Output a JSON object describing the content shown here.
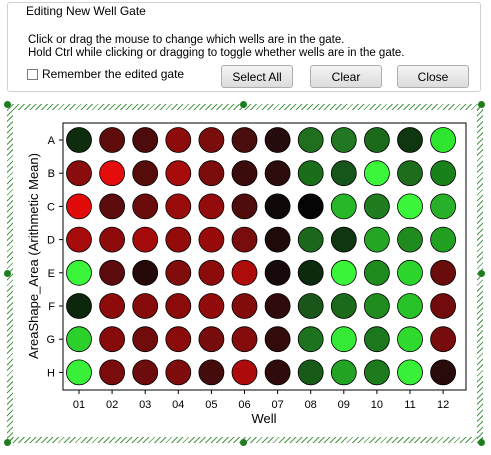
{
  "dialog": {
    "title": "Editing New Well Gate",
    "instruction_1": "Click or drag the mouse to change which wells are in the gate.",
    "instruction_2": "Hold Ctrl while clicking or dragging to toggle whether wells are in the gate.",
    "remember_label": "Remember the edited gate",
    "remember_checked": false,
    "select_all_label": "Select All",
    "clear_label": "Clear",
    "close_label": "Close"
  },
  "plate": {
    "x_label": "Well",
    "y_label": "AreaShape_Area (Arithmetic Mean)",
    "rows": [
      "A",
      "B",
      "C",
      "D",
      "E",
      "F",
      "G",
      "H"
    ],
    "cols": [
      "01",
      "02",
      "03",
      "04",
      "05",
      "06",
      "07",
      "08",
      "09",
      "10",
      "11",
      "12"
    ],
    "well_colors": [
      [
        "#0d2d0e",
        "#5e0c0c",
        "#4d0c0c",
        "#8e0b0b",
        "#7a0c0c",
        "#4a0d0d",
        "#250b0b",
        "#1f6f1f",
        "#227722",
        "#1b6a1b",
        "#0e360f",
        "#2ee62e"
      ],
      [
        "#8a0c0c",
        "#e50c0c",
        "#570c0c",
        "#a70b0b",
        "#7c0c0c",
        "#3c0c0c",
        "#2d0c0c",
        "#1a6e1a",
        "#17561a",
        "#3cf63c",
        "#1d6d1d",
        "#198119"
      ],
      [
        "#e20b0b",
        "#5c0c0c",
        "#6a0c0c",
        "#9a0b0b",
        "#930b0b",
        "#4f0c0c",
        "#0f0909",
        "#050505",
        "#28b728",
        "#1f7d1f",
        "#3bf53b",
        "#28b028"
      ],
      [
        "#a80b0b",
        "#8f0b0b",
        "#a50b0b",
        "#930b0b",
        "#980b0b",
        "#790c0c",
        "#1f0a0a",
        "#1c671c",
        "#0f3610",
        "#25a425",
        "#1f8b1f",
        "#22a022"
      ],
      [
        "#3bf53b",
        "#5c0c0c",
        "#260909",
        "#800c0c",
        "#8c0b0b",
        "#ae0b0b",
        "#180a0a",
        "#0c2a0d",
        "#3af43a",
        "#1f8b1f",
        "#2cd52c",
        "#6a0c0c"
      ],
      [
        "#0c270c",
        "#8e0b0b",
        "#860b0b",
        "#8b0b0b",
        "#920b0b",
        "#820c0c",
        "#2f0b0b",
        "#1a551a",
        "#1b6a1b",
        "#208c20",
        "#29c229",
        "#720c0c"
      ],
      [
        "#2bd02b",
        "#880b0b",
        "#700c0c",
        "#8b0b0b",
        "#770c0c",
        "#840c0c",
        "#330b0b",
        "#1d721d",
        "#36e936",
        "#1c781c",
        "#2dda2d",
        "#760c0c"
      ],
      [
        "#37f037",
        "#7a0c0c",
        "#6c0c0c",
        "#7e0c0c",
        "#440c0c",
        "#ad0b0b",
        "#300b0b",
        "#185a18",
        "#24a224",
        "#1d7a1d",
        "#37f037",
        "#2a0b0b"
      ]
    ]
  }
}
